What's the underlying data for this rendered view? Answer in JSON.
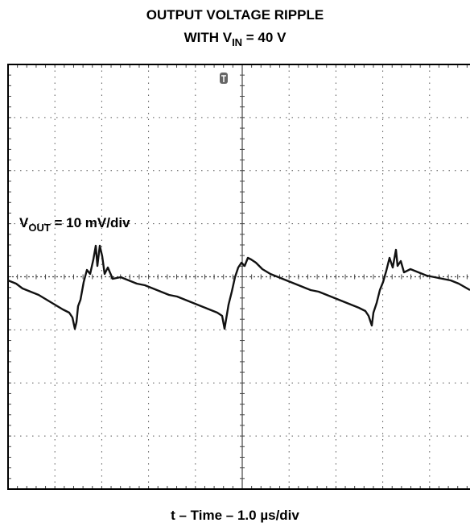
{
  "title": {
    "line1": "OUTPUT VOLTAGE RIPPLE",
    "line2_prefix": "WITH V",
    "line2_sub": "IN",
    "line2_suffix": " = 40 V"
  },
  "annotation": {
    "prefix": "V",
    "sub": "OUT",
    "suffix": " = 10 mV/div"
  },
  "x_label": "t – Time – 1.0 µs/div"
}
